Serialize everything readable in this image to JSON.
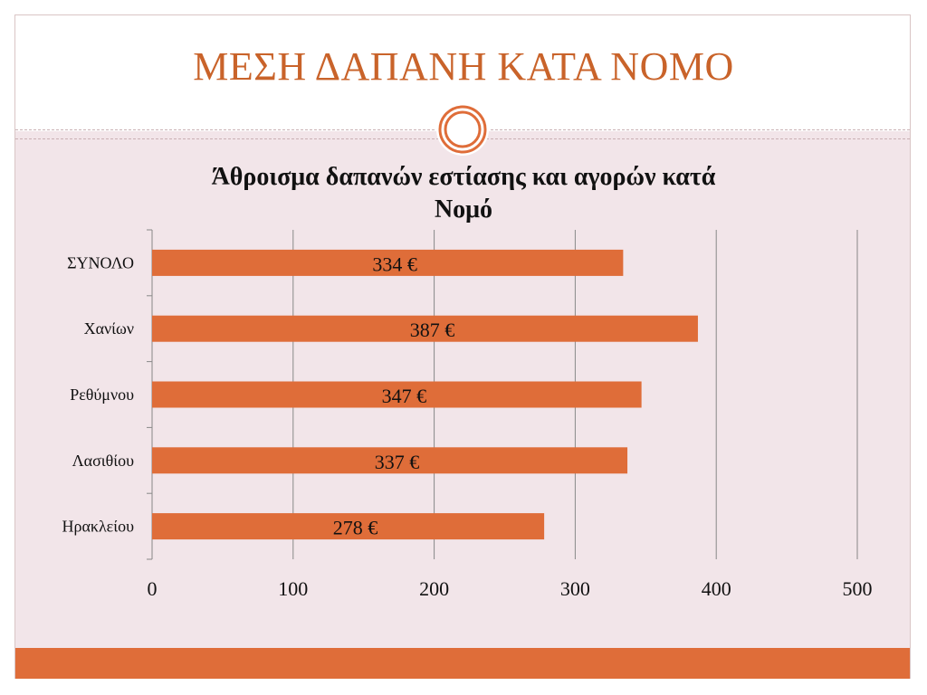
{
  "slide": {
    "title": "ΜΕΣΗ ΔΑΠΑΝΗ ΚΑΤΑ ΝΟΜΟ"
  },
  "colors": {
    "accent": "#df6d39",
    "title": "#c9632a",
    "content_background": "#f2e5e9",
    "gridline": "#888888"
  },
  "chart_data": {
    "type": "bar",
    "orientation": "horizontal",
    "title_lines": [
      "Άθροισμα δαπανών εστίασης και αγορών κατά",
      "Νομό"
    ],
    "categories": [
      "ΣΥΝΟΛΟ",
      "Χανίων",
      "Ρεθύμνου",
      "Λασιθίου",
      "Ηρακλείου"
    ],
    "values": [
      334,
      387,
      347,
      337,
      278
    ],
    "data_labels": [
      "334 €",
      "387 €",
      "347 €",
      "337 €",
      "278 €"
    ],
    "xlim": [
      0,
      500
    ],
    "x_ticks": [
      0,
      100,
      200,
      300,
      400,
      500
    ],
    "grid": true,
    "legend": "none",
    "bar_color": "#df6d39"
  }
}
